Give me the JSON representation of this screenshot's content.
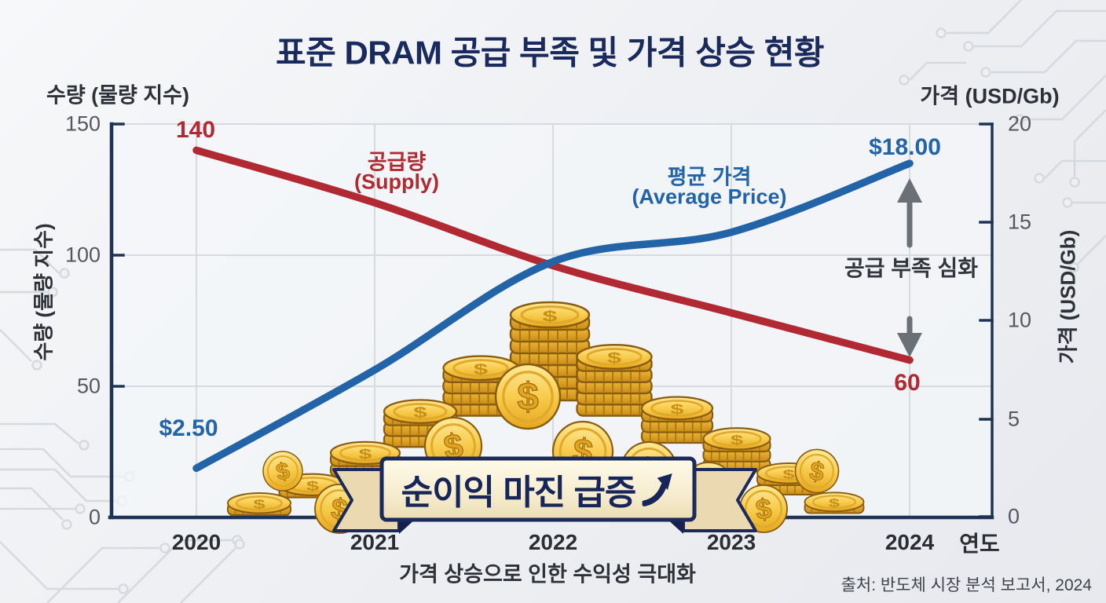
{
  "title": "표준 DRAM 공급 부족 및 가격 상승 현황",
  "axes": {
    "left": {
      "title": "수량 (물량 지수)",
      "ticks": [
        "150",
        "100",
        "50",
        "0"
      ]
    },
    "right": {
      "title": "가격 (USD/Gb)",
      "ticks": [
        "20",
        "15",
        "10",
        "5",
        "0"
      ]
    },
    "x": {
      "title": "연도",
      "years": [
        "2020",
        "2021",
        "2022",
        "2023",
        "2024"
      ]
    }
  },
  "series": {
    "supply": {
      "label_ko": "공급량",
      "label_en": "(Supply)",
      "color": "#b12a33",
      "first_value_label": "140",
      "last_value_label": "60"
    },
    "price": {
      "label_ko": "평균 가격",
      "label_en": "(Average Price)",
      "color": "#2264a7",
      "first_value_label": "$2.50",
      "last_value_label": "$18.00"
    }
  },
  "annotations": {
    "shortage": "공급 부족 심화",
    "banner": "순이익 마진 급증",
    "caption": "가격 상승으로 인한 수익성 극대화",
    "source": "출처: 반도체 시장 분석 보고서, 2024"
  },
  "icons": {
    "surge_arrow": "curved-up-right-arrow",
    "shortage_arrow": "double-headed-vertical-arrow",
    "coin": "gold-dollar-coin"
  },
  "colors": {
    "title": "#1b2a5c",
    "supply": "#b12a33",
    "price": "#2264a7",
    "axis": "#1e3355",
    "grid": "#d7dade",
    "annotation_arrow": "#6b7076",
    "banner_fill": "#f7efd7",
    "banner_border": "#1b2a5a",
    "coin_gold": "#f6c945"
  },
  "chart_data": {
    "type": "line",
    "title": "표준 DRAM 공급 부족 및 가격 상승 현황",
    "categories": [
      "2020",
      "2021",
      "2022",
      "2023",
      "2024"
    ],
    "series": [
      {
        "name": "공급량 (Supply)",
        "axis": "left",
        "color": "#b12a33",
        "values": [
          140,
          120,
          96,
          78,
          60
        ]
      },
      {
        "name": "평균 가격 (Average Price)",
        "axis": "right",
        "color": "#2264a7",
        "values": [
          2.5,
          7.5,
          13,
          14.5,
          18
        ]
      }
    ],
    "left_axis": {
      "label": "수량 (물량 지수)",
      "range": [
        0,
        150
      ],
      "ticks": [
        0,
        50,
        100,
        150
      ]
    },
    "right_axis": {
      "label": "가격 (USD/Gb)",
      "range": [
        0,
        20
      ],
      "ticks": [
        0,
        5,
        10,
        15,
        20
      ]
    },
    "xlabel": "연도",
    "grid": true,
    "legend_position": "inline-labels",
    "point_labels": [
      {
        "series": "공급량 (Supply)",
        "x": "2020",
        "text": "140"
      },
      {
        "series": "공급량 (Supply)",
        "x": "2024",
        "text": "60"
      },
      {
        "series": "평균 가격 (Average Price)",
        "x": "2020",
        "text": "$2.50"
      },
      {
        "series": "평균 가격 (Average Price)",
        "x": "2024",
        "text": "$18.00"
      }
    ]
  }
}
